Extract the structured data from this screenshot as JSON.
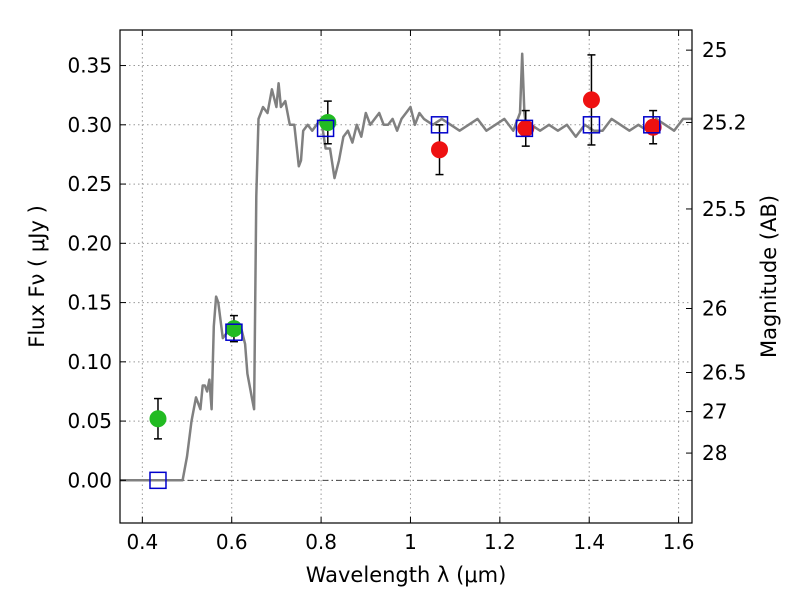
{
  "chart_data": {
    "type": "scatter",
    "xlabel": "Wavelength  λ (μm)",
    "ylabel": "Flux  Fν  ( μJy )",
    "ylabel_right": "Magnitude (AB)",
    "xlim": [
      0.35,
      1.63
    ],
    "ylim": [
      -0.036,
      0.38
    ],
    "grid": true,
    "x_ticks": [
      0.4,
      0.6,
      0.8,
      1.0,
      1.2,
      1.4,
      1.6
    ],
    "x_tick_labels": [
      "0.4",
      "0.6",
      "0.8",
      "1",
      "1.2",
      "1.4",
      "1.6"
    ],
    "y_ticks": [
      0.0,
      0.05,
      0.1,
      0.15,
      0.2,
      0.25,
      0.3,
      0.35
    ],
    "y_tick_labels": [
      "0.00",
      "0.05",
      "0.10",
      "0.15",
      "0.20",
      "0.25",
      "0.30",
      "0.35"
    ],
    "right_ticks": [
      {
        "label": "25",
        "flux": 0.363
      },
      {
        "label": "25.2",
        "flux": 0.302
      },
      {
        "label": "25.5",
        "flux": 0.229
      },
      {
        "label": "26",
        "flux": 0.145
      },
      {
        "label": "26.5",
        "flux": 0.091
      },
      {
        "label": "27",
        "flux": 0.058
      },
      {
        "label": "28",
        "flux": 0.023
      }
    ],
    "colors": {
      "model": "#808080",
      "green": "#22bb22",
      "red": "#ee1111",
      "square": "#0000cc",
      "errorbar": "#000000",
      "grid": "#999999"
    },
    "series": [
      {
        "marker": "line",
        "color": "#808080",
        "x": [
          0.35,
          0.49,
          0.5,
          0.51,
          0.52,
          0.53,
          0.535,
          0.54,
          0.545,
          0.55,
          0.555,
          0.56,
          0.565,
          0.57,
          0.58,
          0.59,
          0.6,
          0.61,
          0.62,
          0.63,
          0.635,
          0.64,
          0.645,
          0.65,
          0.655,
          0.66,
          0.665,
          0.67,
          0.68,
          0.69,
          0.7,
          0.705,
          0.71,
          0.72,
          0.73,
          0.74,
          0.75,
          0.755,
          0.76,
          0.77,
          0.78,
          0.79,
          0.8,
          0.81,
          0.82,
          0.83,
          0.84,
          0.85,
          0.86,
          0.87,
          0.88,
          0.89,
          0.9,
          0.91,
          0.92,
          0.93,
          0.94,
          0.95,
          0.96,
          0.97,
          0.98,
          0.99,
          1.0,
          1.01,
          1.02,
          1.03,
          1.05,
          1.07,
          1.09,
          1.11,
          1.13,
          1.15,
          1.17,
          1.19,
          1.21,
          1.23,
          1.245,
          1.25,
          1.255,
          1.26,
          1.27,
          1.29,
          1.31,
          1.33,
          1.35,
          1.37,
          1.39,
          1.41,
          1.43,
          1.45,
          1.47,
          1.49,
          1.51,
          1.53,
          1.55,
          1.57,
          1.59,
          1.61,
          1.63
        ],
        "y": [
          0.0,
          0.0,
          0.02,
          0.05,
          0.07,
          0.06,
          0.08,
          0.08,
          0.075,
          0.085,
          0.06,
          0.13,
          0.155,
          0.15,
          0.12,
          0.125,
          0.13,
          0.125,
          0.13,
          0.115,
          0.09,
          0.08,
          0.07,
          0.06,
          0.24,
          0.305,
          0.31,
          0.315,
          0.31,
          0.33,
          0.315,
          0.335,
          0.315,
          0.32,
          0.3,
          0.3,
          0.265,
          0.27,
          0.295,
          0.3,
          0.295,
          0.3,
          0.305,
          0.28,
          0.28,
          0.255,
          0.27,
          0.29,
          0.295,
          0.285,
          0.3,
          0.29,
          0.31,
          0.3,
          0.305,
          0.31,
          0.3,
          0.3,
          0.305,
          0.295,
          0.305,
          0.31,
          0.315,
          0.3,
          0.31,
          0.305,
          0.3,
          0.305,
          0.3,
          0.295,
          0.3,
          0.305,
          0.295,
          0.3,
          0.305,
          0.295,
          0.31,
          0.36,
          0.31,
          0.295,
          0.3,
          0.295,
          0.3,
          0.295,
          0.3,
          0.29,
          0.3,
          0.295,
          0.295,
          0.305,
          0.3,
          0.295,
          0.3,
          0.295,
          0.305,
          0.3,
          0.295,
          0.305,
          0.305
        ]
      },
      {
        "marker": "circle",
        "color": "#22bb22",
        "x": [
          0.435,
          0.605,
          0.815
        ],
        "y": [
          0.052,
          0.128,
          0.302
        ],
        "err": [
          0.017,
          0.011,
          0.018
        ]
      },
      {
        "marker": "circle",
        "color": "#ee1111",
        "x": [
          1.065,
          1.258,
          1.405,
          1.543
        ],
        "y": [
          0.279,
          0.297,
          0.321,
          0.298
        ],
        "err": [
          0.021,
          0.015,
          0.038,
          0.014
        ]
      },
      {
        "marker": "square",
        "color": "#0000cc",
        "x": [
          0.435,
          0.605,
          0.81,
          1.065,
          1.255,
          1.405,
          1.54
        ],
        "y": [
          0.0,
          0.125,
          0.297,
          0.3,
          0.297,
          0.3,
          0.3
        ]
      }
    ]
  }
}
